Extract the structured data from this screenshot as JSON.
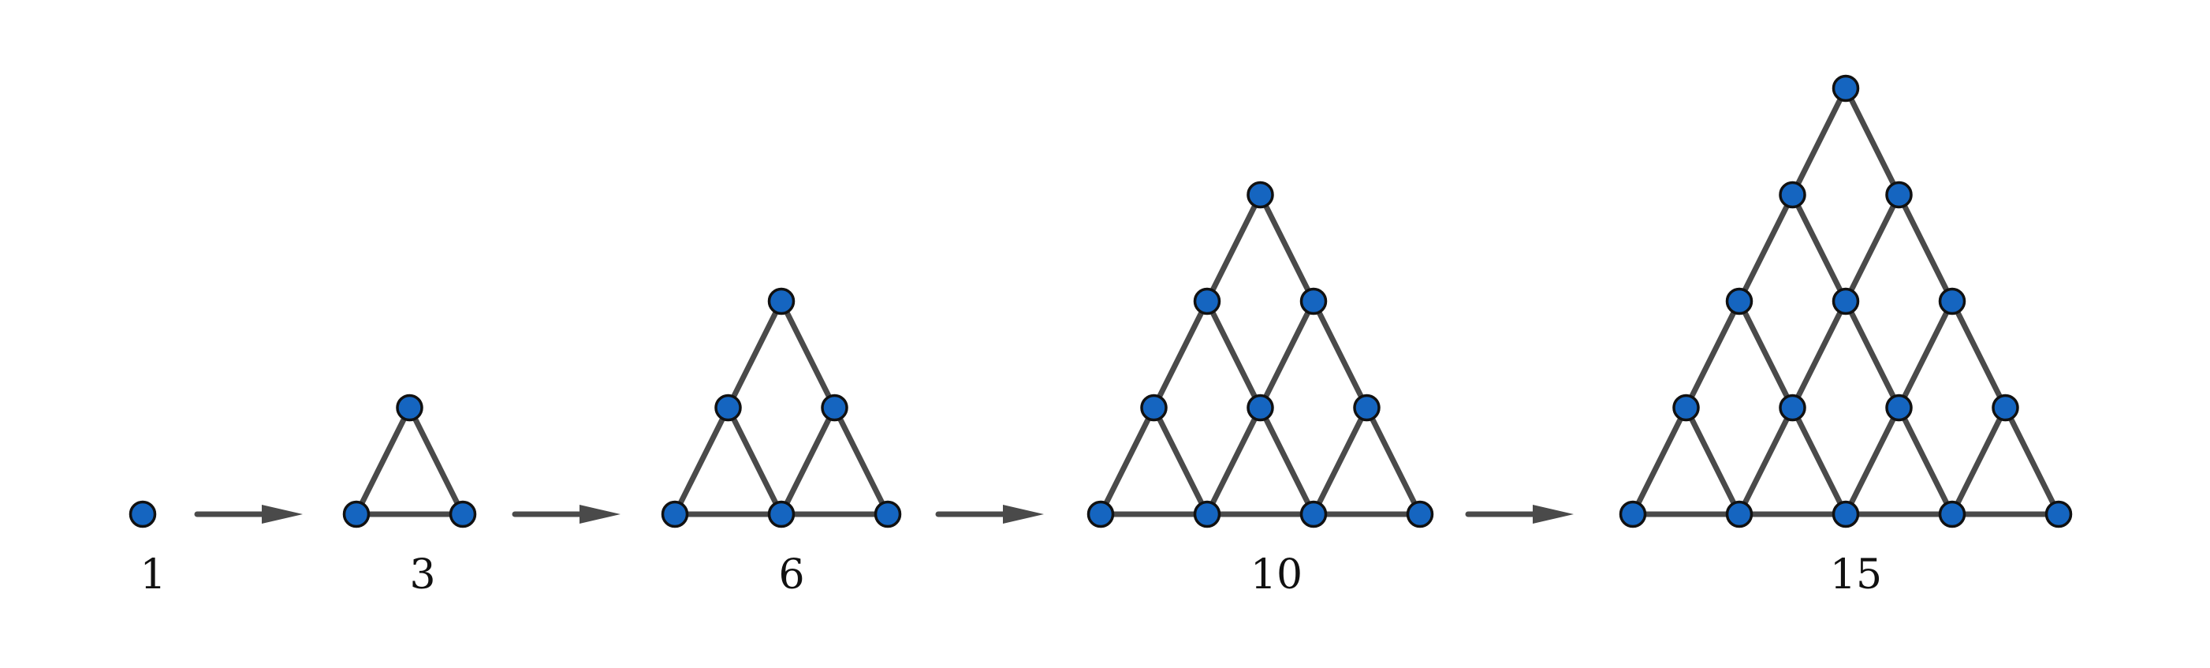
{
  "figure": {
    "stages": [
      {
        "label": "1",
        "size": 1
      },
      {
        "label": "3",
        "size": 2
      },
      {
        "label": "6",
        "size": 3
      },
      {
        "label": "10",
        "size": 4
      },
      {
        "label": "15",
        "size": 5
      }
    ],
    "colors": {
      "node_fill": "#1565c0",
      "node_stroke": "#111111",
      "edge": "#4a4a4a",
      "arrow": "#4a4a4a",
      "label": "#111111",
      "background": "#ffffff"
    }
  }
}
